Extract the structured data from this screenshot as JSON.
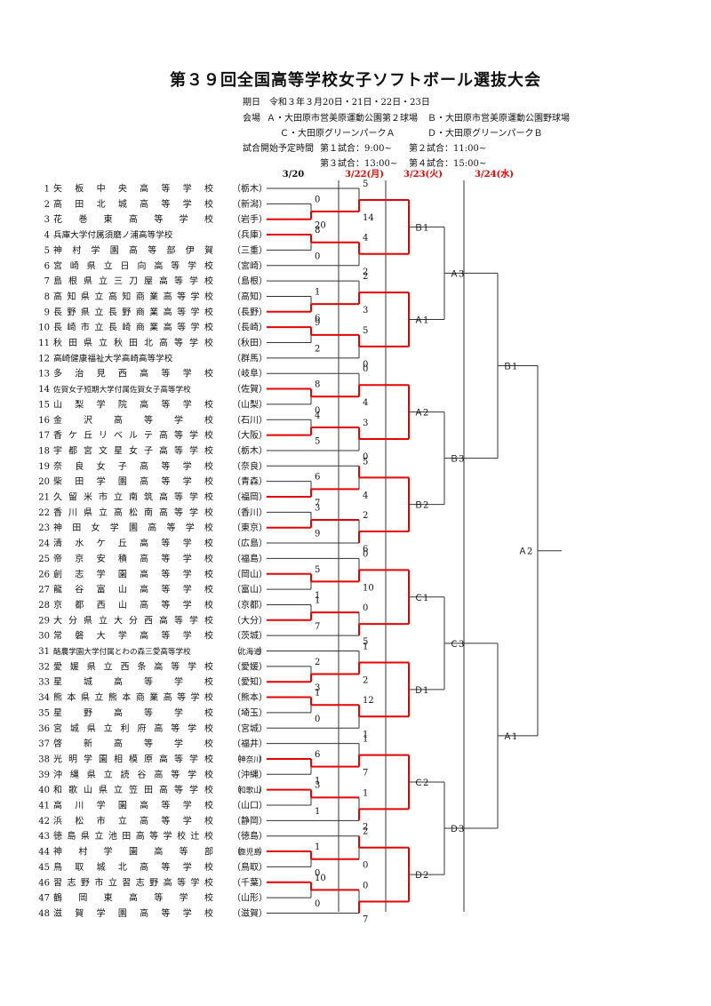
{
  "title": "第３９回全国高等学校女子ソフトボール選抜大会",
  "info": {
    "dates": "期日　令和３年３月20日・21日・22日・23日",
    "venue_label": "会場",
    "venue_a": "Ａ・大田原市営美原運動公園第２球場",
    "venue_b": "Ｂ・大田原市営美原運動公園野球場",
    "venue_c": "Ｃ・大田原グリーンパークＡ",
    "venue_d": "Ｄ・大田原グリーンパークＢ",
    "schedule_label": "試合開始予定時間",
    "game1": "第１試合：9:00~",
    "game2": "第２試合：11:00~",
    "game3": "第３試合：13:00~",
    "game4": "第４試合：15:00~"
  },
  "columns": [
    {
      "label": "3/20",
      "color": "#111111"
    },
    {
      "label": "3/22(月)",
      "color": "#e60000"
    },
    {
      "label": "3/23(火)",
      "color": "#e60000"
    },
    {
      "label": "3/24(水)",
      "color": "#e60000"
    }
  ],
  "teams": [
    {
      "num": "1",
      "name": "矢板中央高等学校",
      "pref": "栃木"
    },
    {
      "num": "2",
      "name": "高田北城高等学校",
      "pref": "新潟"
    },
    {
      "num": "3",
      "name": "花巻東高等学校",
      "pref": "岩手"
    },
    {
      "num": "4",
      "name": "兵庫大学付属須磨ノ浦高等学校",
      "pref": "兵庫"
    },
    {
      "num": "5",
      "name": "神村学園高等部伊賀",
      "pref": "三重"
    },
    {
      "num": "6",
      "name": "宮崎県立日向高等学校",
      "pref": "宮崎"
    },
    {
      "num": "7",
      "name": "島根県立三刀屋高等学校",
      "pref": "島根"
    },
    {
      "num": "8",
      "name": "高知県立高知商業高等学校",
      "pref": "高知"
    },
    {
      "num": "9",
      "name": "長野県立長野商業高等学校",
      "pref": "長野"
    },
    {
      "num": "10",
      "name": "長崎市立長崎商業高等学校",
      "pref": "長崎"
    },
    {
      "num": "11",
      "name": "秋田県立秋田北高等学校",
      "pref": "秋田"
    },
    {
      "num": "12",
      "name": "高崎健康福祉大学高崎高等学校",
      "pref": "群馬"
    },
    {
      "num": "13",
      "name": "多治見西高等学校",
      "pref": "岐阜"
    },
    {
      "num": "14",
      "name": "佐賀女子短期大学付属佐賀女子高等学校",
      "pref": "佐賀"
    },
    {
      "num": "15",
      "name": "山梨学院高等学校",
      "pref": "山梨"
    },
    {
      "num": "16",
      "name": "金沢高等学校",
      "pref": "石川"
    },
    {
      "num": "17",
      "name": "香ケ丘リベルテ高等学校",
      "pref": "大阪"
    },
    {
      "num": "18",
      "name": "宇都宮文星女子高等学校",
      "pref": "栃木"
    },
    {
      "num": "19",
      "name": "奈良女子高等学校",
      "pref": "奈良"
    },
    {
      "num": "20",
      "name": "柴田学園高等学校",
      "pref": "青森"
    },
    {
      "num": "21",
      "name": "久留米市立南筑高等学校",
      "pref": "福岡"
    },
    {
      "num": "22",
      "name": "香川県立高松南高等学校",
      "pref": "香川"
    },
    {
      "num": "23",
      "name": "神田女学園高等学校",
      "pref": "東京"
    },
    {
      "num": "24",
      "name": "清水ケ丘高等学校",
      "pref": "広島"
    },
    {
      "num": "25",
      "name": "帝京安積高等学校",
      "pref": "福島"
    },
    {
      "num": "26",
      "name": "創志学園高等学校",
      "pref": "岡山"
    },
    {
      "num": "27",
      "name": "龍谷富山高等学校",
      "pref": "富山"
    },
    {
      "num": "28",
      "name": "京都西山高等学校",
      "pref": "京都"
    },
    {
      "num": "29",
      "name": "大分県立大分西高等学校",
      "pref": "大分"
    },
    {
      "num": "30",
      "name": "常磐大学高等学校",
      "pref": "茨城"
    },
    {
      "num": "31",
      "name": "酪農学園大学付属とわの森三愛高等学校",
      "pref": "北海道"
    },
    {
      "num": "32",
      "name": "愛媛県立西条高等学校",
      "pref": "愛媛"
    },
    {
      "num": "33",
      "name": "星城高等学校",
      "pref": "愛知"
    },
    {
      "num": "34",
      "name": "熊本県立熊本商業高等学校",
      "pref": "熊本"
    },
    {
      "num": "35",
      "name": "星野高等学校",
      "pref": "埼玉"
    },
    {
      "num": "36",
      "name": "宮城県立利府高等学校",
      "pref": "宮城"
    },
    {
      "num": "37",
      "name": "啓新高等学校",
      "pref": "福井"
    },
    {
      "num": "38",
      "name": "光明学園相模原高等学校",
      "pref": "神奈川"
    },
    {
      "num": "39",
      "name": "沖縄県立読谷高等学校",
      "pref": "沖縄"
    },
    {
      "num": "40",
      "name": "和歌山県立笠田高等学校",
      "pref": "和歌山"
    },
    {
      "num": "41",
      "name": "高川学園高等学校",
      "pref": "山口"
    },
    {
      "num": "42",
      "name": "浜松市立高等学校",
      "pref": "静岡"
    },
    {
      "num": "43",
      "name": "徳島県立池田高等学校辻校",
      "pref": "徳島"
    },
    {
      "num": "44",
      "name": "神村学園高等部",
      "pref": "鹿児島"
    },
    {
      "num": "45",
      "name": "鳥取城北高等学校",
      "pref": "鳥取"
    },
    {
      "num": "46",
      "name": "習志野市立習志野高等学校",
      "pref": "千葉"
    },
    {
      "num": "47",
      "name": "鶴岡東高等学校",
      "pref": "山形"
    },
    {
      "num": "48",
      "name": "滋賀学園高等学校",
      "pref": "滋賀"
    }
  ],
  "round1": [
    {
      "a": 2,
      "b": 3,
      "score_a": "0",
      "score_b": "20",
      "winner": "b"
    },
    {
      "a": 4,
      "b": 5,
      "score_a": "8",
      "score_b": "0",
      "winner": "a"
    },
    {
      "a": 8,
      "b": 9,
      "score_a": "1",
      "score_b": "6",
      "winner": "b"
    },
    {
      "a": 10,
      "b": 11,
      "score_a": "9",
      "score_b": "2",
      "winner": "a"
    },
    {
      "a": 14,
      "b": 15,
      "score_a": "8",
      "score_b": "0",
      "winner": "a"
    },
    {
      "a": 16,
      "b": 17,
      "score_a": "4",
      "score_b": "5",
      "winner": "b"
    },
    {
      "a": 20,
      "b": 21,
      "score_a": "6",
      "score_b": "7",
      "winner": "b"
    },
    {
      "a": 22,
      "b": 23,
      "score_a": "3",
      "score_b": "9",
      "winner": "b"
    },
    {
      "a": 26,
      "b": 27,
      "score_a": "5",
      "score_b": "1",
      "winner": "a"
    },
    {
      "a": 28,
      "b": 29,
      "score_a": "1",
      "score_b": "7",
      "winner": "b"
    },
    {
      "a": 32,
      "b": 33,
      "score_a": "2",
      "score_b": "3",
      "winner": "b"
    },
    {
      "a": 34,
      "b": 35,
      "score_a": "1",
      "score_b": "0",
      "winner": "a"
    },
    {
      "a": 38,
      "b": 39,
      "score_a": "6",
      "score_b": "1",
      "winner": "a"
    },
    {
      "a": 40,
      "b": 41,
      "score_a": "3",
      "score_b": "1",
      "winner": "a"
    },
    {
      "a": 44,
      "b": 45,
      "score_a": "1",
      "score_b": "0",
      "winner": "a"
    },
    {
      "a": 46,
      "b": 47,
      "score_a": "10",
      "score_b": "0",
      "winner": "a"
    }
  ],
  "round2": [
    {
      "score_a": "5",
      "score_b": "14",
      "winner": "b"
    },
    {
      "score_a": "4",
      "score_b": "2",
      "winner": "a"
    },
    {
      "score_a": "2",
      "score_b": "3",
      "winner": "b"
    },
    {
      "score_a": "5",
      "score_b": "0",
      "winner": "a"
    },
    {
      "score_a": "0",
      "score_b": "4",
      "winner": "b"
    },
    {
      "score_a": "3",
      "score_b": "0",
      "winner": "a"
    },
    {
      "score_a": "5",
      "score_b": "4",
      "winner": "a"
    },
    {
      "score_a": "2",
      "score_b": "6",
      "winner": "b"
    },
    {
      "score_a": "0",
      "score_b": "10",
      "winner": "b"
    },
    {
      "score_a": "0",
      "score_b": "5",
      "winner": "b"
    },
    {
      "score_a": "1",
      "score_b": "2",
      "winner": "b"
    },
    {
      "score_a": "12",
      "score_b": "1",
      "winner": "a"
    },
    {
      "score_a": "1",
      "score_b": "7",
      "winner": "b"
    },
    {
      "score_a": "1",
      "score_b": "2",
      "winner": "b"
    },
    {
      "score_a": "2",
      "score_b": "0",
      "winner": "a"
    },
    {
      "score_a": "0",
      "score_b": "7",
      "winner": "b"
    }
  ],
  "round3_venues": [
    "Ｂ1",
    "Ａ1",
    "Ａ2",
    "Ｂ2",
    "Ｃ1",
    "Ｄ1",
    "Ｃ2",
    "Ｄ2"
  ],
  "round4_venues": [
    "Ａ3",
    "Ｂ3",
    "Ｃ3",
    "Ｄ3"
  ],
  "semi_venues": [
    "Ｂ1",
    "Ａ1"
  ],
  "final_venue": "Ａ2"
}
